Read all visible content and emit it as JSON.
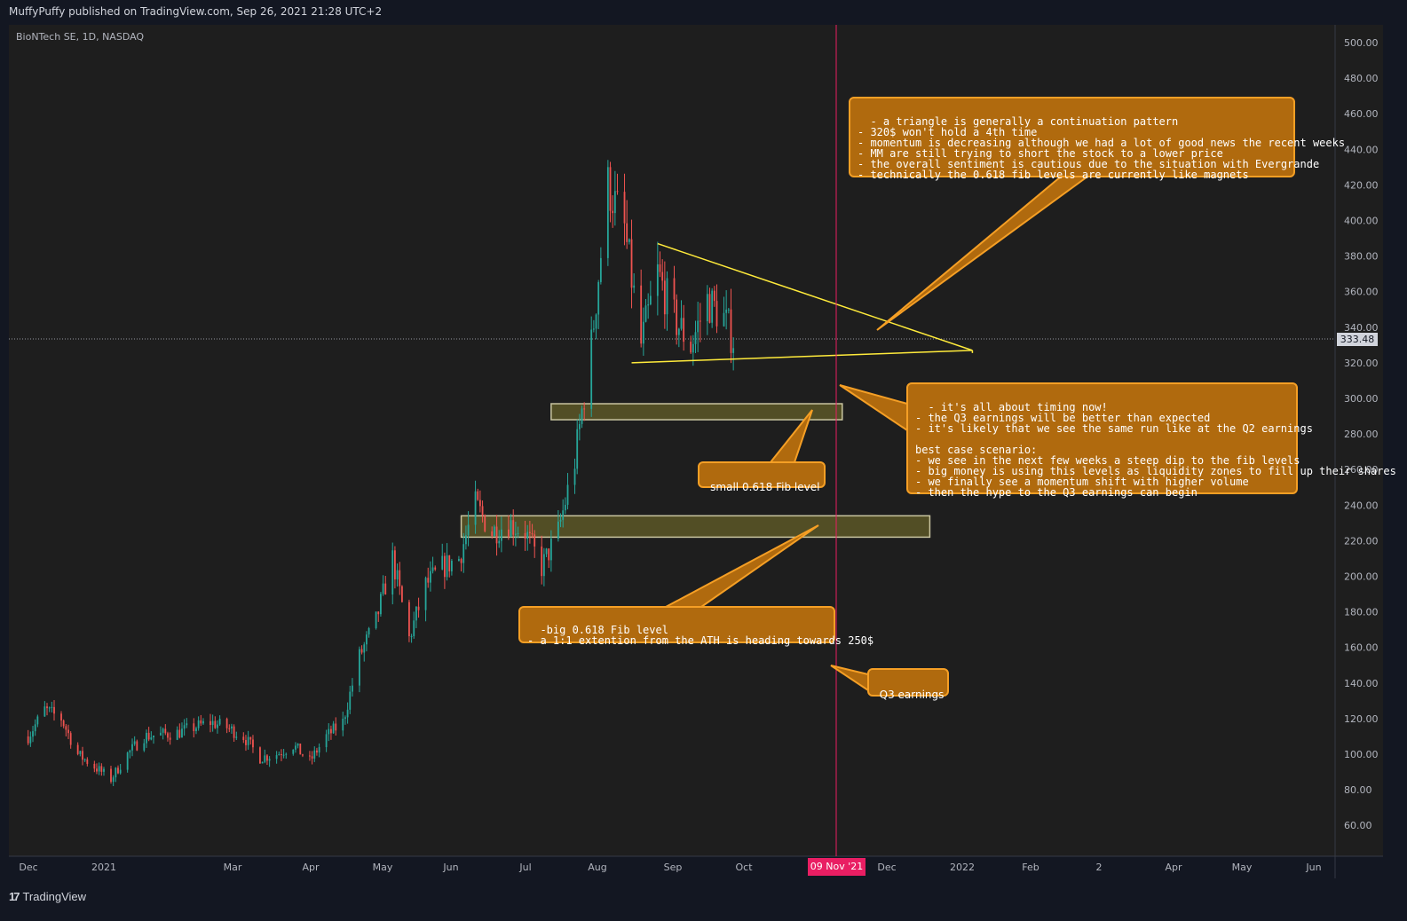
{
  "header": {
    "text": "MuffyPuffy published on TradingView.com, Sep 26, 2021 21:28 UTC+2"
  },
  "symbol": {
    "title": "BioNTech SE, 1D, NASDAQ"
  },
  "footer": {
    "brand": "TradingView",
    "logo_icon": "tradingview-logo-icon"
  },
  "colors": {
    "background": "#131722",
    "plot_background": "#1e1e1e",
    "up_candle": "#26a69a",
    "down_candle": "#ef5350",
    "triangle": "#ffeb3b",
    "callout_fill": "#b06a0e",
    "callout_border": "#f59f25",
    "zone_fill": "#5c5727",
    "zone_border": "#c9c5a0",
    "vline": "#e91e63"
  },
  "chart_data": {
    "type": "candlestick",
    "title": "BioNTech SE, 1D, NASDAQ",
    "ylim": [
      40,
      510
    ],
    "y_ticks": [
      "500.00",
      "480.00",
      "460.00",
      "440.00",
      "420.00",
      "400.00",
      "380.00",
      "360.00",
      "340.00",
      "320.00",
      "300.00",
      "280.00",
      "260.00",
      "240.00",
      "220.00",
      "200.00",
      "180.00",
      "160.00",
      "140.00",
      "120.00",
      "100.00",
      "80.00",
      "60.00"
    ],
    "x_ticks": [
      "Dec",
      "2021",
      "Mar",
      "Apr",
      "May",
      "Jun",
      "Jul",
      "Aug",
      "Sep",
      "Oct",
      "Dec",
      "2022",
      "Feb",
      "2",
      "Apr",
      "May",
      "Jun"
    ],
    "last_price": "333.48",
    "highlight_date": "09 Nov '21",
    "price_path": [
      [
        "2020-11-30",
        110
      ],
      [
        "2020-12-07",
        125
      ],
      [
        "2020-12-14",
        120
      ],
      [
        "2020-12-21",
        100
      ],
      [
        "2021-01-04",
        86
      ],
      [
        "2021-01-11",
        100
      ],
      [
        "2021-01-18",
        110
      ],
      [
        "2021-02-01",
        112
      ],
      [
        "2021-02-15",
        118
      ],
      [
        "2021-02-22",
        115
      ],
      [
        "2021-03-01",
        110
      ],
      [
        "2021-03-08",
        98
      ],
      [
        "2021-03-15",
        100
      ],
      [
        "2021-03-22",
        105
      ],
      [
        "2021-03-29",
        96
      ],
      [
        "2021-04-05",
        110
      ],
      [
        "2021-04-12",
        118
      ],
      [
        "2021-04-19",
        155
      ],
      [
        "2021-04-26",
        175
      ],
      [
        "2021-05-03",
        210
      ],
      [
        "2021-05-10",
        165
      ],
      [
        "2021-05-17",
        195
      ],
      [
        "2021-05-24",
        205
      ],
      [
        "2021-05-31",
        210
      ],
      [
        "2021-06-07",
        240
      ],
      [
        "2021-06-14",
        225
      ],
      [
        "2021-06-21",
        230
      ],
      [
        "2021-06-28",
        225
      ],
      [
        "2021-07-05",
        205
      ],
      [
        "2021-07-12",
        225
      ],
      [
        "2021-07-19",
        265
      ],
      [
        "2021-07-26",
        330
      ],
      [
        "2021-08-02",
        420
      ],
      [
        "2021-08-09",
        395
      ],
      [
        "2021-08-16",
        330
      ],
      [
        "2021-08-23",
        370
      ],
      [
        "2021-08-30",
        345
      ],
      [
        "2021-09-06",
        330
      ],
      [
        "2021-09-13",
        355
      ],
      [
        "2021-09-20",
        345
      ],
      [
        "2021-09-24",
        333.48
      ]
    ],
    "annotations": {
      "triangle_upper": [
        [
          "2021-08-23",
          387
        ],
        [
          "2022-01-03",
          327
        ]
      ],
      "triangle_lower": [
        [
          "2021-08-12",
          320
        ],
        [
          "2022-01-03",
          327
        ]
      ],
      "zone_small": {
        "x_range": [
          "2021-07-09",
          "2021-11-09"
        ],
        "y_range": [
          288,
          297
        ]
      },
      "zone_big": {
        "x_range": [
          "2021-06-01",
          "2021-12-16"
        ],
        "y_range": [
          222,
          234
        ]
      },
      "vertical_line_date": "2021-11-09"
    }
  },
  "callouts": {
    "triangle_note": "- a triangle is generally a continuation pattern\n- 320$ won't hold a 4th time\n- momentum is decreasing although we had a lot of good news the recent weeks\n- MM are still trying to short the stock to a lower price\n- the overall sentiment is cautious due to the situation with Evergrande\n- technically the 0.618 fib levels are currently like magnets",
    "timing_note": "- it's all about timing now!\n- the Q3 earnings will be better than expected\n- it's likely that we see the same run like at the Q2 earnings\n\nbest case scenario:\n- we see in the next few weeks a steep dip to the fib levels\n- big money is using this levels as liquidity zones to fill up their shares\n- we finally see a momentum shift with higher volume\n- then the hype to the Q3 earnings can begin",
    "small_fib": "small 0.618 Fib level",
    "big_fib": "-big 0.618 Fib level\n- a 1:1 extention from the ATH is heading towards 250$",
    "q3": "Q3 earnings"
  }
}
